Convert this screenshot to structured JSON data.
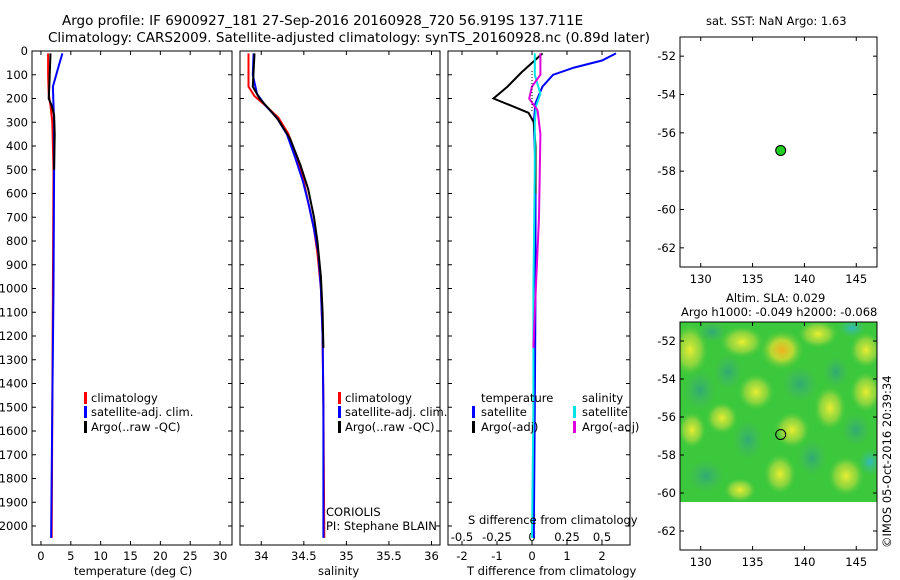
{
  "header": {
    "line1": "Argo profile: IF 6900927_181 27-Sep-2016 20160928_720 56.919S 137.711E",
    "line2": "Climatology: CARS2009. Satellite-adjusted climatology: synTS_20160928.nc (0.89d later)"
  },
  "colors": {
    "climatology": "#ff0000",
    "satellite": "#0000ff",
    "argo": "#000000",
    "sat_temp_diff": "#0000ff",
    "sat_sal_diff": "#00e5e5",
    "argo_sal_diff": "#e000e0",
    "marker": "#22cc22"
  },
  "chart_data": [
    {
      "id": "temperature",
      "type": "line",
      "xlabel": "temperature (deg C)",
      "ylabel": "",
      "xlim": [
        -1.5,
        32
      ],
      "ylim": [
        2080,
        0
      ],
      "xticks": [
        0,
        5,
        10,
        15,
        20,
        25,
        30
      ],
      "xtick_labels": [
        "0",
        "5",
        "10",
        "15",
        "20",
        "25",
        "30"
      ],
      "yticks": [
        0,
        100,
        200,
        300,
        400,
        500,
        600,
        700,
        800,
        900,
        1000,
        1100,
        1200,
        1300,
        1400,
        1500,
        1600,
        1700,
        1800,
        1900,
        2000
      ],
      "ytick_labels": [
        "0",
        "100",
        "200",
        "300",
        "400",
        "500",
        "600",
        "700",
        "800",
        "900",
        "1000",
        "1100",
        "1200",
        "1300",
        "1400",
        "1500",
        "1600",
        "1700",
        "1800",
        "1900",
        "2000"
      ],
      "legend": [
        "climatology",
        "satellite-adj. clim.",
        "Argo(..raw -QC)"
      ],
      "series": [
        {
          "name": "climatology",
          "color": "#ff0000",
          "points": [
            [
              1.2,
              10
            ],
            [
              1.2,
              100
            ],
            [
              1.3,
              180
            ],
            [
              1.6,
              230
            ],
            [
              1.9,
              300
            ],
            [
              2.1,
              500
            ],
            [
              2.0,
              1000
            ],
            [
              1.9,
              1500
            ],
            [
              1.8,
              2050
            ]
          ]
        },
        {
          "name": "satellite-adj. clim.",
          "color": "#0000ff",
          "points": [
            [
              3.6,
              10
            ],
            [
              3.0,
              60
            ],
            [
              2.0,
              150
            ],
            [
              2.1,
              230
            ],
            [
              2.2,
              300
            ],
            [
              2.2,
              500
            ],
            [
              2.1,
              1000
            ],
            [
              1.9,
              1500
            ],
            [
              1.7,
              2050
            ]
          ]
        },
        {
          "name": "Argo(..raw -QC)",
          "color": "#000000",
          "points": [
            [
              1.6,
              10
            ],
            [
              1.5,
              80
            ],
            [
              1.4,
              150
            ],
            [
              1.3,
              200
            ],
            [
              1.8,
              230
            ],
            [
              2.2,
              270
            ],
            [
              2.3,
              350
            ],
            [
              2.2,
              500
            ]
          ]
        }
      ]
    },
    {
      "id": "salinity",
      "type": "line",
      "xlabel": "salinity",
      "xlim": [
        33.75,
        36.1
      ],
      "ylim": [
        2080,
        0
      ],
      "xticks": [
        34,
        34.5,
        35,
        35.5,
        36
      ],
      "xtick_labels": [
        "34",
        "34.5",
        "35",
        "35.5",
        "36"
      ],
      "legend": [
        "climatology",
        "satellite-adj. clim.",
        "Argo(..raw -QC)"
      ],
      "annotation": [
        "CORIOLIS",
        "PI: Stephane BLAIN"
      ],
      "series": [
        {
          "name": "climatology",
          "color": "#ff0000",
          "points": [
            [
              33.85,
              10
            ],
            [
              33.85,
              150
            ],
            [
              33.92,
              190
            ],
            [
              34.05,
              230
            ],
            [
              34.2,
              280
            ],
            [
              34.32,
              350
            ],
            [
              34.42,
              450
            ],
            [
              34.5,
              550
            ],
            [
              34.56,
              650
            ],
            [
              34.62,
              750
            ],
            [
              34.66,
              850
            ],
            [
              34.7,
              1000
            ],
            [
              34.72,
              1200
            ],
            [
              34.73,
              1500
            ],
            [
              34.74,
              2050
            ]
          ]
        },
        {
          "name": "satellite-adj. clim.",
          "color": "#0000ff",
          "points": [
            [
              33.91,
              10
            ],
            [
              33.9,
              100
            ],
            [
              33.95,
              180
            ],
            [
              34.05,
              230
            ],
            [
              34.18,
              280
            ],
            [
              34.3,
              350
            ],
            [
              34.4,
              450
            ],
            [
              34.49,
              550
            ],
            [
              34.56,
              650
            ],
            [
              34.62,
              750
            ],
            [
              34.67,
              850
            ],
            [
              34.7,
              1000
            ],
            [
              34.72,
              1200
            ],
            [
              34.73,
              1500
            ],
            [
              34.73,
              2050
            ]
          ]
        },
        {
          "name": "Argo(..raw -QC)",
          "color": "#000000",
          "points": [
            [
              33.92,
              10
            ],
            [
              33.9,
              150
            ],
            [
              33.98,
              200
            ],
            [
              34.08,
              240
            ],
            [
              34.2,
              290
            ],
            [
              34.34,
              370
            ],
            [
              34.46,
              480
            ],
            [
              34.55,
              580
            ],
            [
              34.62,
              700
            ],
            [
              34.66,
              800
            ],
            [
              34.7,
              950
            ],
            [
              34.72,
              1100
            ],
            [
              34.73,
              1250
            ]
          ]
        }
      ]
    },
    {
      "id": "differences",
      "type": "line",
      "xlabel": "T difference from climatology",
      "xlabel2": "S difference from climatology",
      "xlim": [
        -2.4,
        2.8
      ],
      "ylim": [
        2080,
        0
      ],
      "xticks": [
        -2,
        -1,
        0,
        1,
        2
      ],
      "xtick_labels": [
        "-2",
        "-1",
        "0",
        "1",
        "2"
      ],
      "xticks2": [
        -0.5,
        -0.25,
        0,
        0.25,
        0.5
      ],
      "xtick_labels2": [
        "-0.5",
        "-0.25",
        "0",
        "0.25",
        "0.5"
      ],
      "legend_left_title": "temperature",
      "legend_right_title": "salinity",
      "legend_left": [
        "satellite",
        "Argo(-adj)"
      ],
      "legend_right": [
        "satellite",
        "Argo(-adj)"
      ],
      "series": [
        {
          "name": "temperature satellite",
          "color": "#0000ff",
          "points": [
            [
              2.4,
              10
            ],
            [
              2.0,
              40
            ],
            [
              1.2,
              70
            ],
            [
              0.6,
              100
            ],
            [
              0.3,
              150
            ],
            [
              0.1,
              220
            ],
            [
              0.05,
              300
            ],
            [
              0.1,
              500
            ],
            [
              0.1,
              1000
            ],
            [
              0.08,
              1500
            ],
            [
              0.05,
              2050
            ]
          ]
        },
        {
          "name": "temperature Argo(-adj)",
          "color": "#000000",
          "points": [
            [
              0.3,
              10
            ],
            [
              -0.3,
              90
            ],
            [
              -0.7,
              150
            ],
            [
              -1.1,
              200
            ],
            [
              -0.6,
              230
            ],
            [
              -0.1,
              260
            ],
            [
              0.05,
              300
            ],
            [
              0.1,
              400
            ],
            [
              0.1,
              600
            ]
          ]
        },
        {
          "name": "salinity satellite",
          "color": "#00e5e5",
          "points": [
            [
              0.02,
              10
            ],
            [
              0.02,
              100
            ],
            [
              0.06,
              180
            ],
            [
              0.03,
              230
            ],
            [
              0.02,
              300
            ],
            [
              0.02,
              500
            ],
            [
              0.01,
              1000
            ],
            [
              0.01,
              1500
            ],
            [
              0.0,
              2050
            ]
          ]
        },
        {
          "name": "salinity Argo(-adj)",
          "color": "#e000e0",
          "points": [
            [
              0.06,
              10
            ],
            [
              0.06,
              100
            ],
            [
              0.0,
              150
            ],
            [
              -0.02,
              200
            ],
            [
              0.04,
              250
            ],
            [
              0.06,
              350
            ],
            [
              0.05,
              700
            ],
            [
              0.02,
              1100
            ],
            [
              0.01,
              1250
            ]
          ]
        }
      ]
    },
    {
      "id": "sst",
      "type": "scatter",
      "title": "sat. SST: NaN Argo: 1.63",
      "xlim": [
        128,
        147
      ],
      "ylim": [
        -63,
        -51
      ],
      "xticks": [
        130,
        135,
        140,
        145
      ],
      "xtick_labels": [
        "130",
        "135",
        "140",
        "145"
      ],
      "yticks": [
        -52,
        -54,
        -56,
        -58,
        -60,
        -62
      ],
      "ytick_labels": [
        "-52",
        "-54",
        "-56",
        "-58",
        "-60",
        "-62"
      ],
      "points": [
        [
          137.711,
          -56.919
        ]
      ]
    },
    {
      "id": "sla",
      "type": "heatmap",
      "title_line1": "Altim. SLA: 0.029",
      "title_line2": "Argo h1000: -0.049 h2000: -0.068",
      "xlim": [
        128,
        147
      ],
      "ylim": [
        -63,
        -51
      ],
      "map_lat_range": [
        -60,
        -51
      ],
      "xticks": [
        130,
        135,
        140,
        145
      ],
      "xtick_labels": [
        "130",
        "135",
        "140",
        "145"
      ],
      "yticks": [
        -52,
        -54,
        -56,
        -58,
        -60,
        -62
      ],
      "ytick_labels": [
        "-52",
        "-54",
        "-56",
        "-58",
        "-60",
        "-62"
      ],
      "points": [
        [
          137.711,
          -56.919
        ]
      ],
      "credit": "©IMOS 05-Oct-2016 20:39:34"
    }
  ]
}
